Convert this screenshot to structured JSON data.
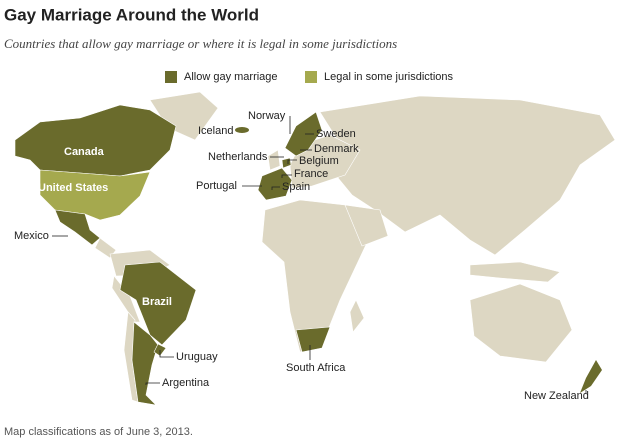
{
  "header": {
    "title": "Gay Marriage Around the World",
    "subtitle": "Countries that allow gay marriage or where it is legal in some jurisdictions"
  },
  "legend": [
    {
      "label": "Allow gay marriage",
      "color": "#6a6b2c"
    },
    {
      "label": "Legal in some jurisdictions",
      "color": "#a5a94e"
    }
  ],
  "countries": [
    {
      "label": "Canada"
    },
    {
      "label": "United States"
    },
    {
      "label": "Mexico"
    },
    {
      "label": "Brazil"
    },
    {
      "label": "Uruguay"
    },
    {
      "label": "Argentina"
    },
    {
      "label": "Iceland"
    },
    {
      "label": "Norway"
    },
    {
      "label": "Sweden"
    },
    {
      "label": "Denmark"
    },
    {
      "label": "Netherlands"
    },
    {
      "label": "Belgium"
    },
    {
      "label": "France"
    },
    {
      "label": "Portugal"
    },
    {
      "label": "Spain"
    },
    {
      "label": "South Africa"
    },
    {
      "label": "New Zealand"
    }
  ],
  "footnote": "Map classifications as of June 3, 2013."
}
